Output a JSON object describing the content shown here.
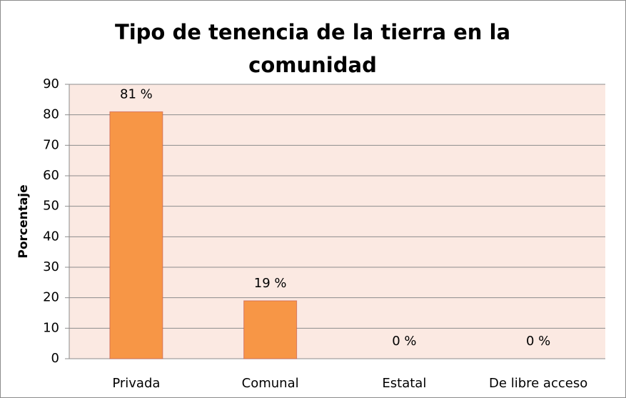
{
  "chart_data": {
    "type": "bar",
    "title": "Tipo de tenencia de la tierra en la comunidad",
    "y_label": "Porcentaje",
    "categories": [
      "Privada",
      "Comunal",
      "Estatal",
      "De libre acceso"
    ],
    "values": [
      81,
      19,
      0,
      0
    ],
    "value_labels": [
      "81 %",
      "19 %",
      "0 %",
      "0 %"
    ],
    "color": "#f79646",
    "ylim": [
      0,
      90
    ],
    "yticks": [
      0,
      10,
      20,
      30,
      40,
      50,
      60,
      70,
      80,
      90
    ],
    "grid": true
  }
}
